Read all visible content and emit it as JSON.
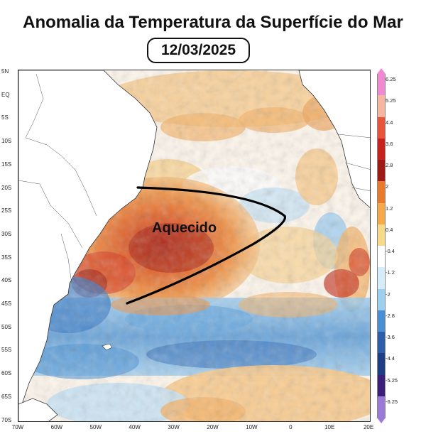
{
  "title": "Anomalia da Temperatura da Superfície do Mar",
  "date": "12/03/2025",
  "map": {
    "annotation_label": "Aquecido",
    "lat_labels": [
      "5N",
      "EQ",
      "5S",
      "10S",
      "15S",
      "20S",
      "25S",
      "30S",
      "35S",
      "40S",
      "45S",
      "50S",
      "55S",
      "60S",
      "65S",
      "70S"
    ],
    "lon_labels": [
      "70W",
      "60W",
      "50W",
      "40W",
      "30W",
      "20W",
      "10W",
      "0",
      "10E",
      "20E"
    ],
    "land_color": "#ffffff",
    "coast_color": "#333333"
  },
  "colorbar": {
    "labels": [
      "6.25",
      "5.25",
      "4.4",
      "3.6",
      "2.8",
      "2",
      "1.2",
      "0.4",
      "-0.4",
      "-1.2",
      "-2",
      "-2.8",
      "-3.6",
      "-4.4",
      "-5.25",
      "-6.25"
    ],
    "colors": [
      "#f08ad0",
      "#f4b6a0",
      "#e8553a",
      "#c8221f",
      "#9e1a16",
      "#e87a2e",
      "#f5a94a",
      "#f8d98a",
      "#ffffff",
      "#d6ecf8",
      "#9dd0ef",
      "#4a8fd4",
      "#2f5ea8",
      "#1f3d84",
      "#3c1f7a",
      "#9a7ad6"
    ]
  }
}
